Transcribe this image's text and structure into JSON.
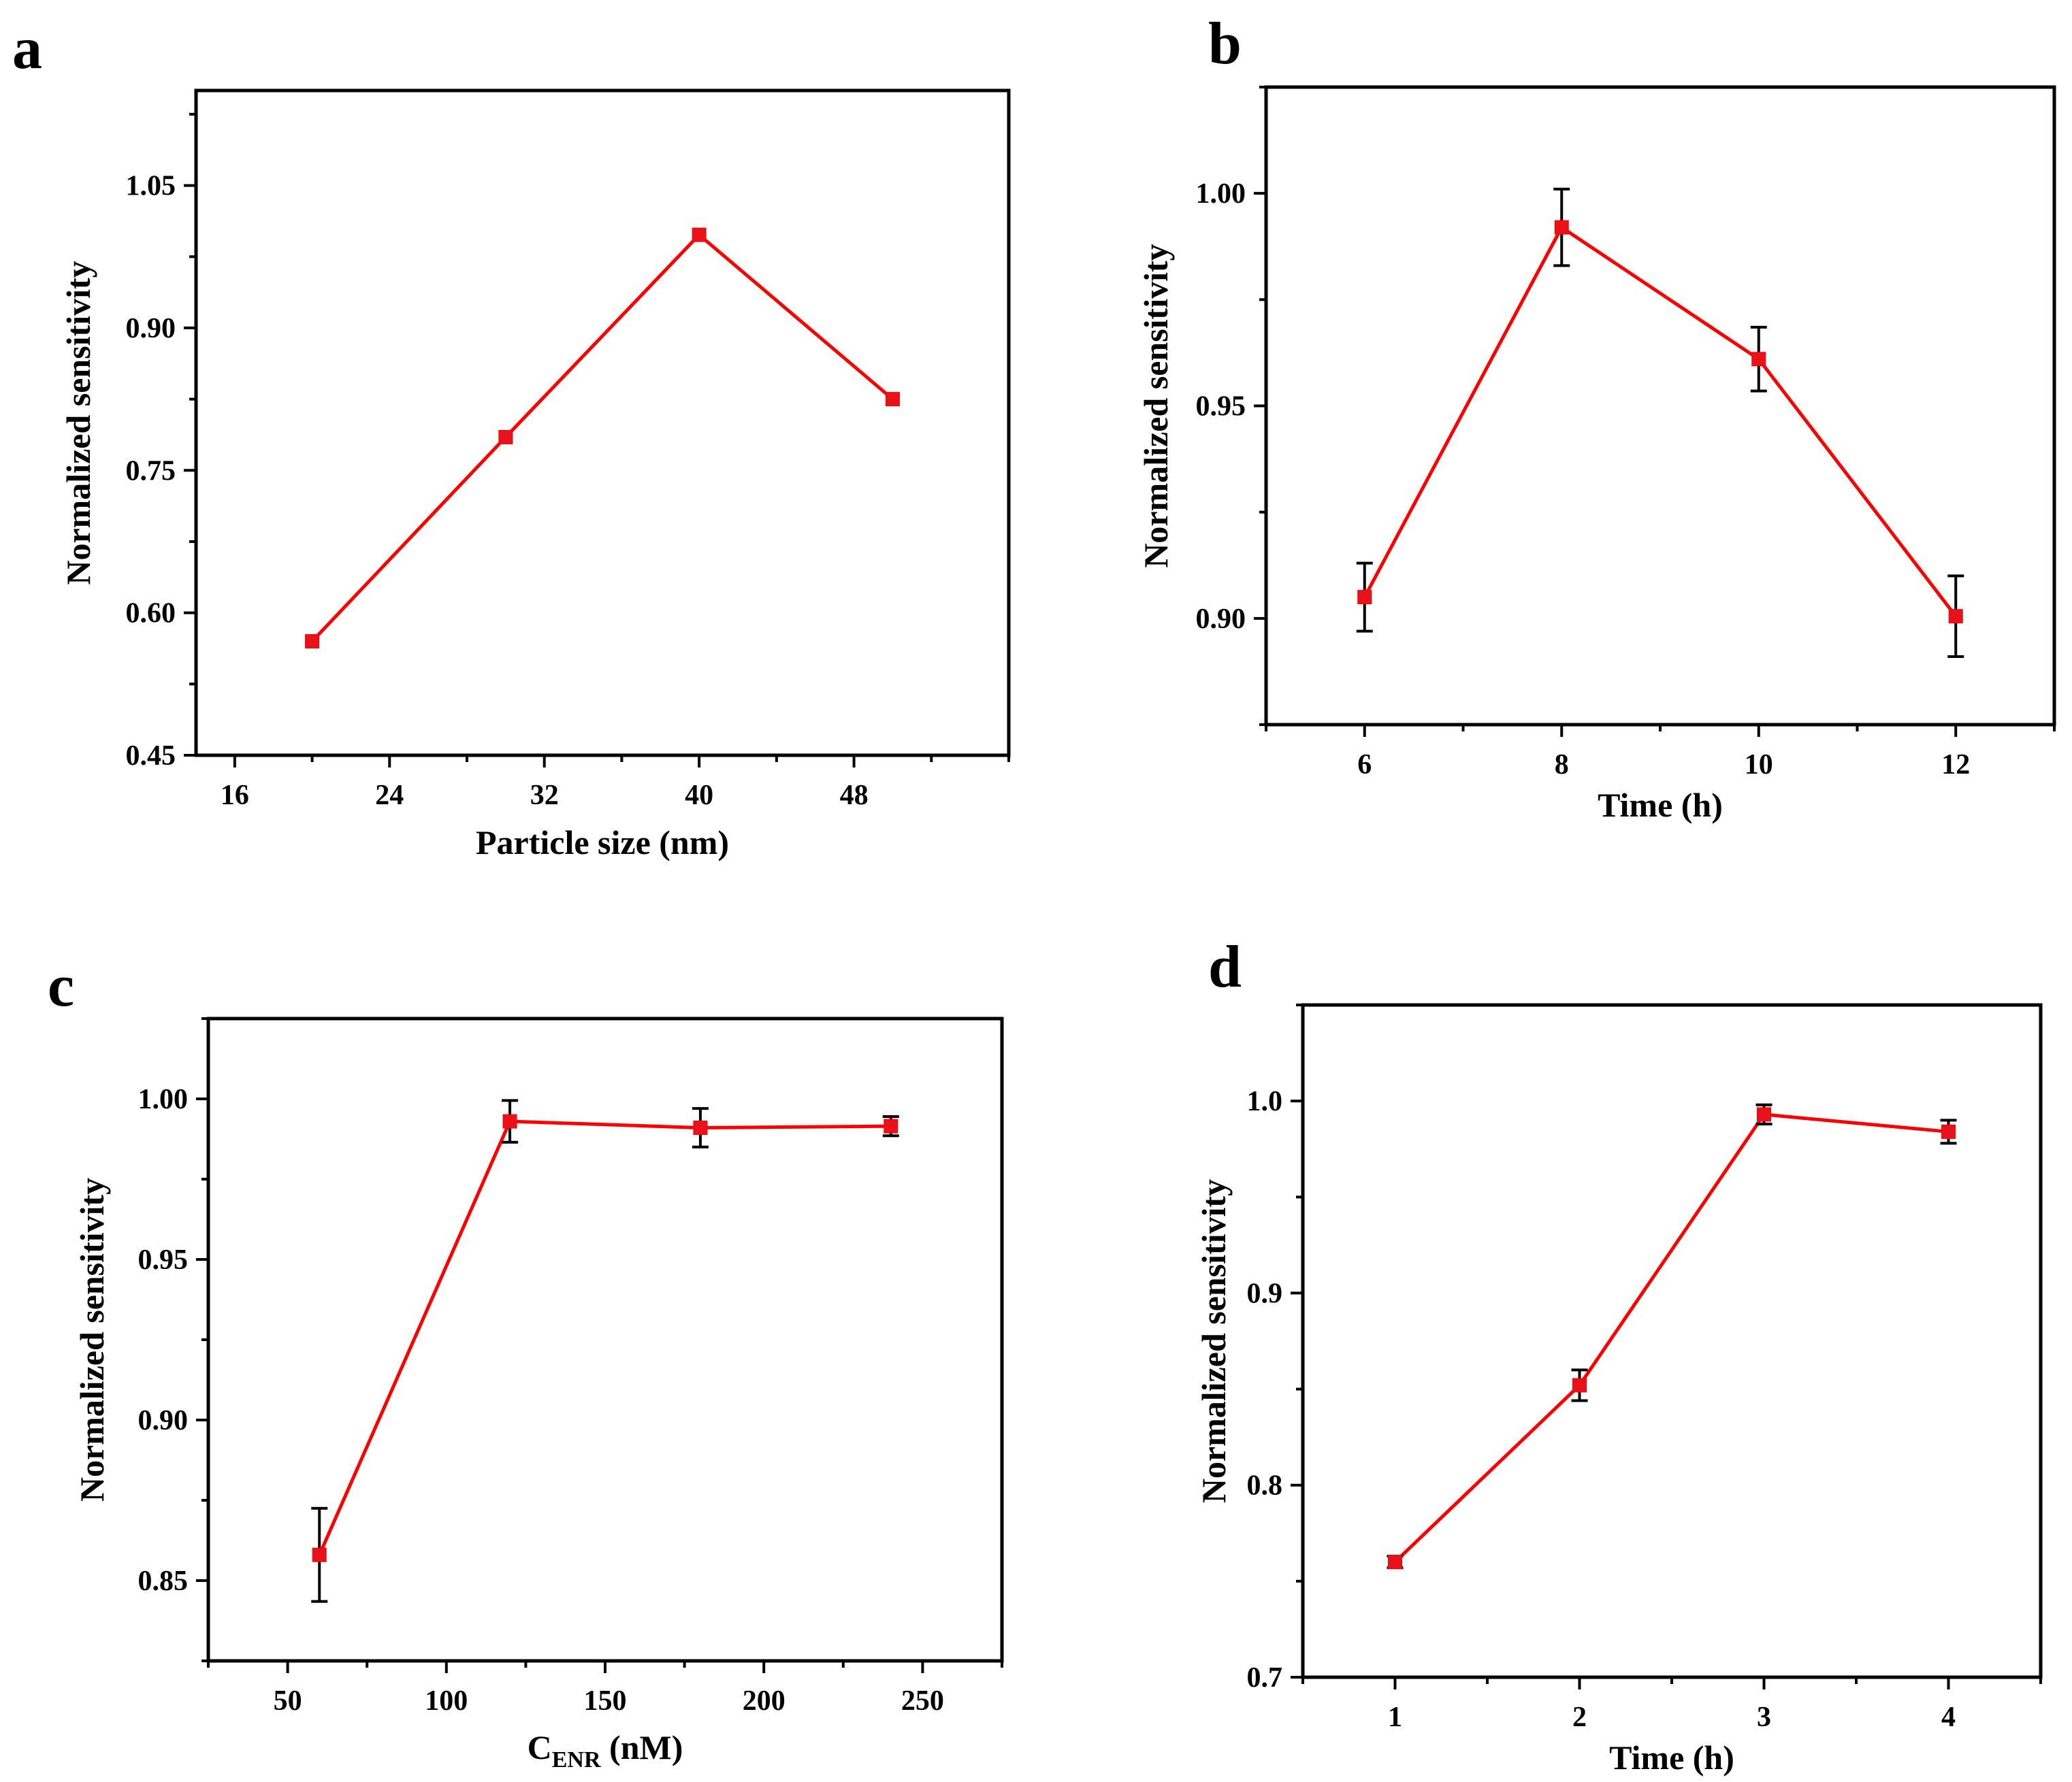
{
  "chart_data": [
    {
      "panel_label": "a",
      "type": "line",
      "xlabel": "Particle size (nm)",
      "ylabel": "Normalized sensitivity",
      "xlim": [
        14,
        56
      ],
      "ylim": [
        0.45,
        1.15
      ],
      "xticks": [
        16,
        24,
        32,
        40,
        48
      ],
      "xtick_labels": [
        "16",
        "24",
        "32",
        "40",
        "48"
      ],
      "yticks": [
        0.45,
        0.6,
        0.75,
        0.9,
        1.05
      ],
      "ytick_labels": [
        "0.45",
        "0.60",
        "0.75",
        "0.90",
        "1.05"
      ],
      "x": [
        20,
        30,
        40,
        50
      ],
      "y": [
        0.57,
        0.785,
        0.998,
        0.825
      ],
      "yerr": [
        0,
        0,
        0,
        0
      ]
    },
    {
      "panel_label": "b",
      "type": "line",
      "xlabel": "Time (h)",
      "ylabel": "Normalized sensitivity",
      "xlim": [
        5,
        13
      ],
      "ylim": [
        0.875,
        1.025
      ],
      "xticks": [
        6,
        8,
        10,
        12
      ],
      "xtick_labels": [
        "6",
        "8",
        "10",
        "12"
      ],
      "yticks": [
        0.9,
        0.95,
        1.0
      ],
      "ytick_labels": [
        "0.90",
        "0.95",
        "1.00"
      ],
      "x": [
        6,
        8,
        10,
        12
      ],
      "y": [
        0.905,
        0.992,
        0.961,
        0.9005
      ],
      "yerr": [
        0.008,
        0.009,
        0.0075,
        0.0095
      ]
    },
    {
      "panel_label": "c",
      "type": "line",
      "xlabel_main": "C",
      "xlabel_sub": "ENR",
      "xlabel_rest": " (nM)",
      "ylabel": "Normalized sensitivity",
      "xlim": [
        25,
        275
      ],
      "ylim": [
        0.825,
        1.025
      ],
      "xticks": [
        50,
        100,
        150,
        200,
        250
      ],
      "xtick_labels": [
        "50",
        "100",
        "150",
        "200",
        "250"
      ],
      "yticks": [
        0.85,
        0.9,
        0.95,
        1.0
      ],
      "ytick_labels": [
        "0.85",
        "0.90",
        "0.95",
        "1.00"
      ],
      "x": [
        60,
        120,
        180,
        240
      ],
      "y": [
        0.858,
        0.993,
        0.991,
        0.9915
      ],
      "yerr": [
        0.0145,
        0.0065,
        0.006,
        0.003
      ]
    },
    {
      "panel_label": "d",
      "type": "line",
      "xlabel": "Time (h)",
      "ylabel": "Normalized sensitivity",
      "xlim": [
        0.5,
        4.5
      ],
      "ylim": [
        0.7,
        1.05
      ],
      "xticks": [
        1,
        2,
        3,
        4
      ],
      "xtick_labels": [
        "1",
        "2",
        "3",
        "4"
      ],
      "yticks": [
        0.7,
        0.8,
        0.9,
        1.0
      ],
      "ytick_labels": [
        "0.7",
        "0.8",
        "0.9",
        "1.0"
      ],
      "x": [
        1,
        2,
        3,
        4
      ],
      "y": [
        0.76,
        0.852,
        0.993,
        0.984
      ],
      "yerr": [
        0.003,
        0.008,
        0.005,
        0.006
      ]
    }
  ]
}
